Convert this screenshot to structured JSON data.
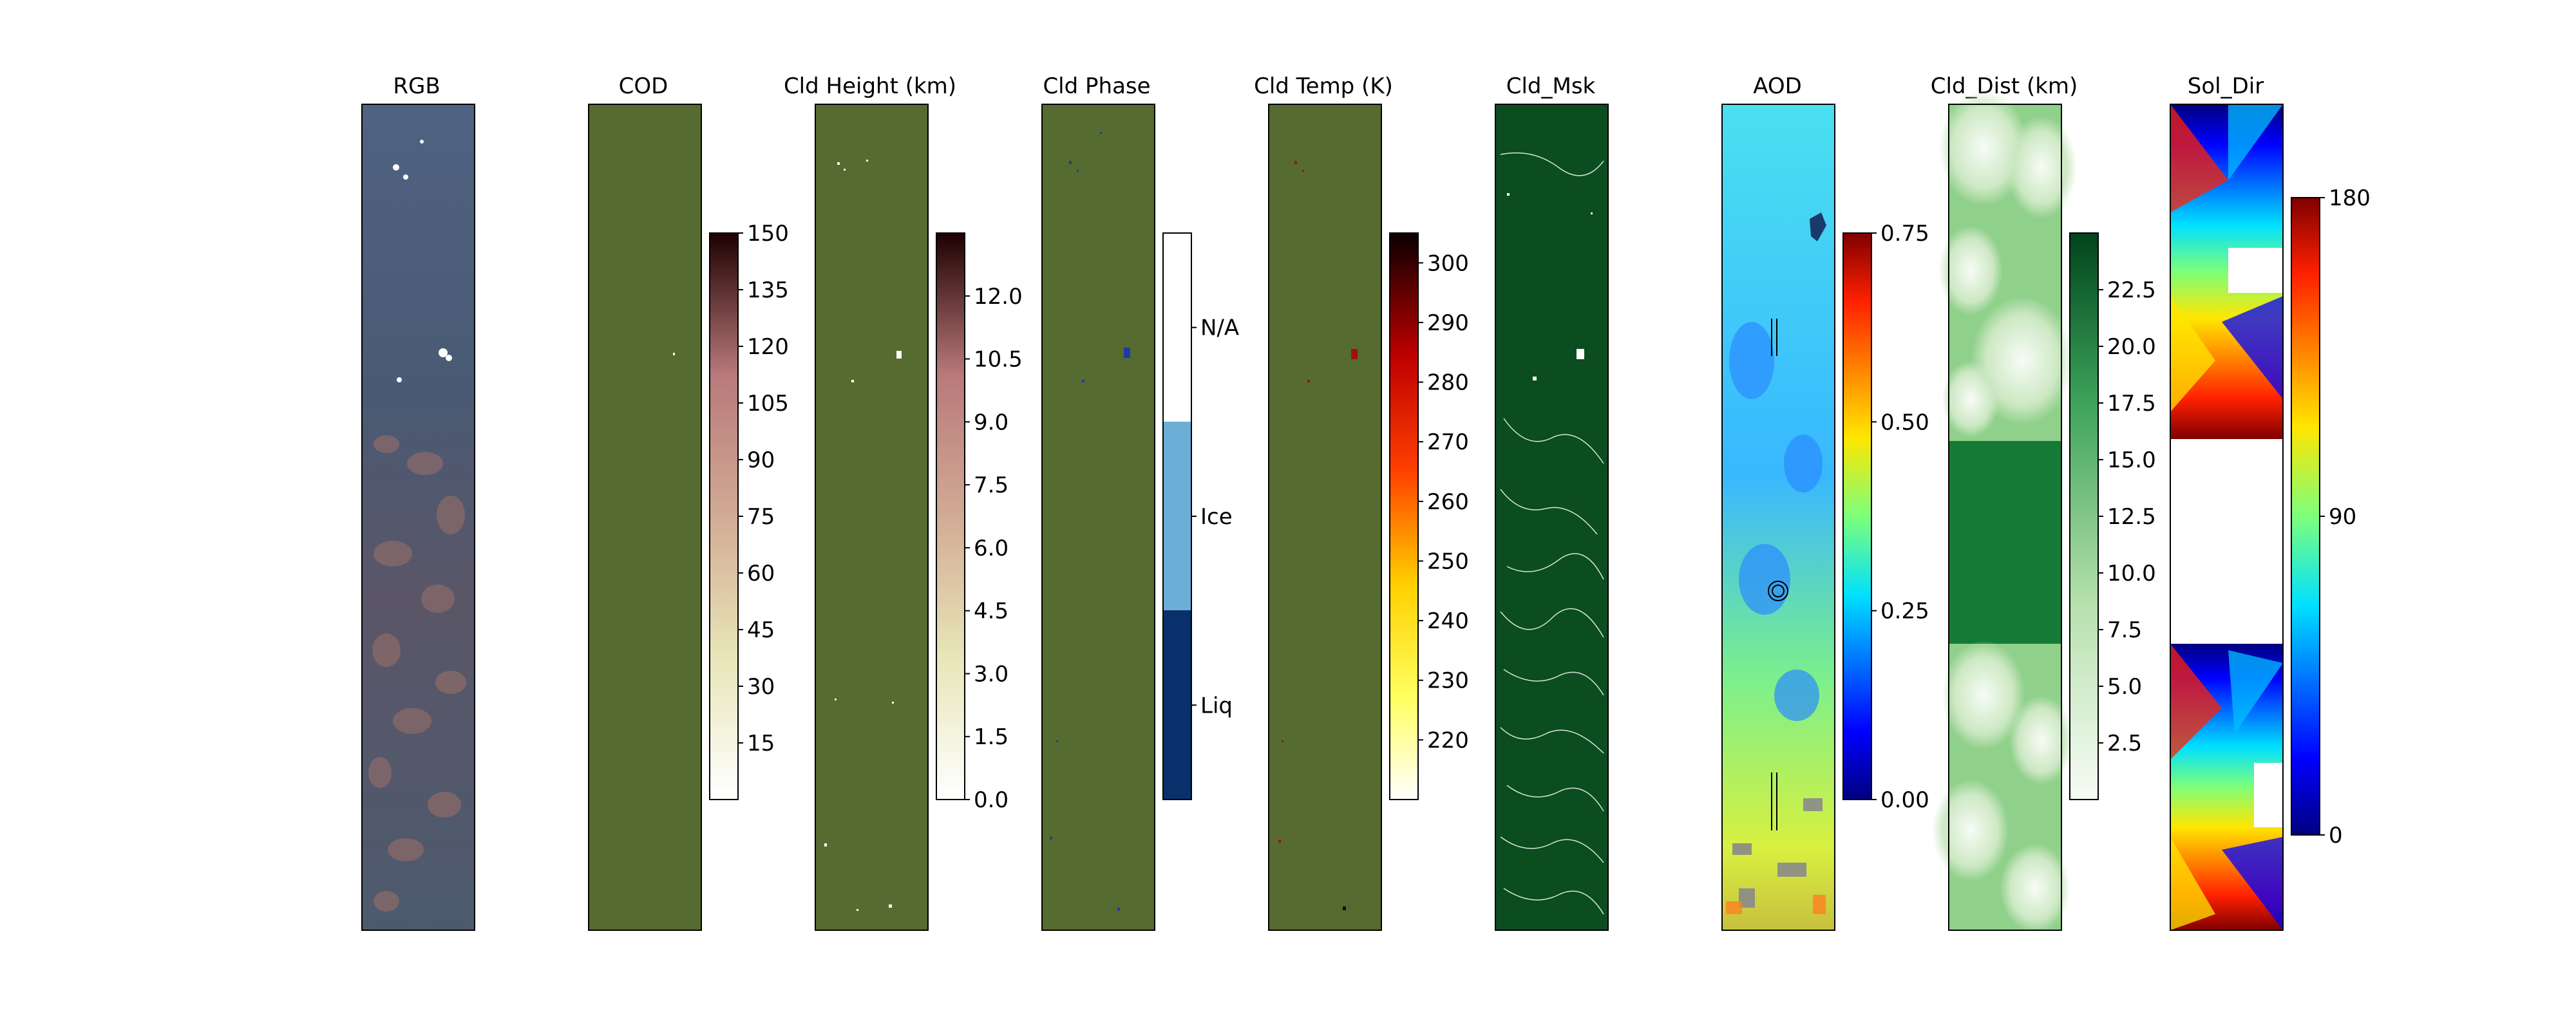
{
  "chart_data": {
    "type": "heatmap",
    "panels": [
      {
        "title": "RGB",
        "kind": "rgb-image"
      },
      {
        "title": "COD",
        "kind": "heatmap",
        "colormap": "pink_r",
        "clim": [
          0,
          150
        ],
        "colorbar_ticks": [
          "15",
          "30",
          "45",
          "60",
          "75",
          "90",
          "105",
          "120",
          "135",
          "150"
        ],
        "colorbar_values": [
          15,
          30,
          45,
          60,
          75,
          90,
          105,
          120,
          135,
          150
        ]
      },
      {
        "title": "Cld Height (km)",
        "kind": "heatmap",
        "colormap": "pink_r",
        "clim": [
          0,
          13.5
        ],
        "colorbar_ticks": [
          "0.0",
          "1.5",
          "3.0",
          "4.5",
          "6.0",
          "7.5",
          "9.0",
          "10.5",
          "12.0"
        ],
        "colorbar_values": [
          0,
          1.5,
          3.0,
          4.5,
          6.0,
          7.5,
          9.0,
          10.5,
          12.0
        ]
      },
      {
        "title": "Cld Phase",
        "kind": "categorical",
        "categories": [
          "Liq",
          "Ice",
          "N/A"
        ],
        "category_colors": [
          "#08306b",
          "#6baed6",
          "#ffffff"
        ]
      },
      {
        "title": "Cld Temp (K)",
        "kind": "heatmap",
        "colormap": "hot_r",
        "clim": [
          210,
          305
        ],
        "colorbar_ticks": [
          "220",
          "230",
          "240",
          "250",
          "260",
          "270",
          "280",
          "290",
          "300"
        ],
        "colorbar_values": [
          220,
          230,
          240,
          250,
          260,
          270,
          280,
          290,
          300
        ]
      },
      {
        "title": "Cld_Msk",
        "kind": "mask",
        "colors": [
          "#0b4d1e",
          "#ffffff"
        ]
      },
      {
        "title": "AOD",
        "kind": "heatmap",
        "colormap": "jet",
        "clim": [
          0,
          0.75
        ],
        "colorbar_ticks": [
          "0.00",
          "0.25",
          "0.50",
          "0.75"
        ],
        "colorbar_values": [
          0,
          0.25,
          0.5,
          0.75
        ]
      },
      {
        "title": "Cld_Dist (km)",
        "kind": "heatmap",
        "colormap": "Greens",
        "clim": [
          0,
          25
        ],
        "colorbar_ticks": [
          "2.5",
          "5.0",
          "7.5",
          "10.0",
          "12.5",
          "15.0",
          "17.5",
          "20.0",
          "22.5"
        ],
        "colorbar_values": [
          2.5,
          5.0,
          7.5,
          10.0,
          12.5,
          15.0,
          17.5,
          20.0,
          22.5
        ]
      },
      {
        "title": "Sol_Dir",
        "kind": "heatmap",
        "colormap": "jet_r",
        "clim": [
          0,
          180
        ],
        "colorbar_ticks": [
          "0",
          "90",
          "180"
        ],
        "colorbar_values": [
          0,
          90,
          180
        ]
      }
    ],
    "colors": {
      "olive_fill": "#556b2f",
      "rgb_base": "#4a5a72",
      "mask_green": "#0b4d1e"
    }
  }
}
